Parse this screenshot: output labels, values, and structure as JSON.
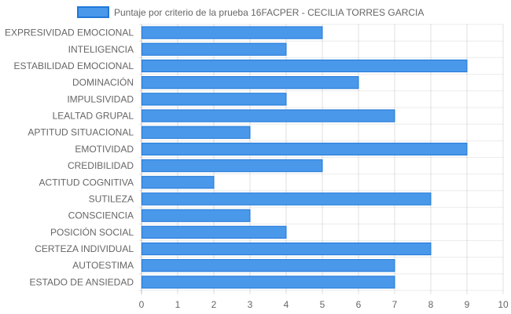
{
  "chart_data": {
    "type": "bar",
    "orientation": "horizontal",
    "legend_position": "top",
    "grid": true,
    "xlim": [
      0,
      10
    ],
    "x_ticks": [
      "0",
      "1",
      "2",
      "3",
      "4",
      "5",
      "6",
      "7",
      "8",
      "9",
      "10"
    ],
    "categories": [
      "EXPRESIVIDAD EMOCIONAL",
      "INTELIGENCIA",
      "ESTABILIDAD EMOCIONAL",
      "DOMINACIÓN",
      "IMPULSIVIDAD",
      "LEALTAD GRUPAL",
      "APTITUD SITUACIONAL",
      "EMOTIVIDAD",
      "CREDIBILIDAD",
      "ACTITUD COGNITIVA",
      "SUTILEZA",
      "CONSCIENCIA",
      "POSICIÓN SOCIAL",
      "CERTEZA INDIVIDUAL",
      "AUTOESTIMA",
      "ESTADO DE ANSIEDAD"
    ],
    "series": [
      {
        "name": "Puntaje por criterio de la prueba 16FACPER - CECILIA TORRES GARCIA",
        "color": "#4a98ea",
        "border_color": "#1f78d8",
        "values": [
          5,
          4,
          9,
          6,
          4,
          7,
          3,
          9,
          5,
          2,
          8,
          3,
          4,
          8,
          7,
          7
        ]
      }
    ]
  }
}
